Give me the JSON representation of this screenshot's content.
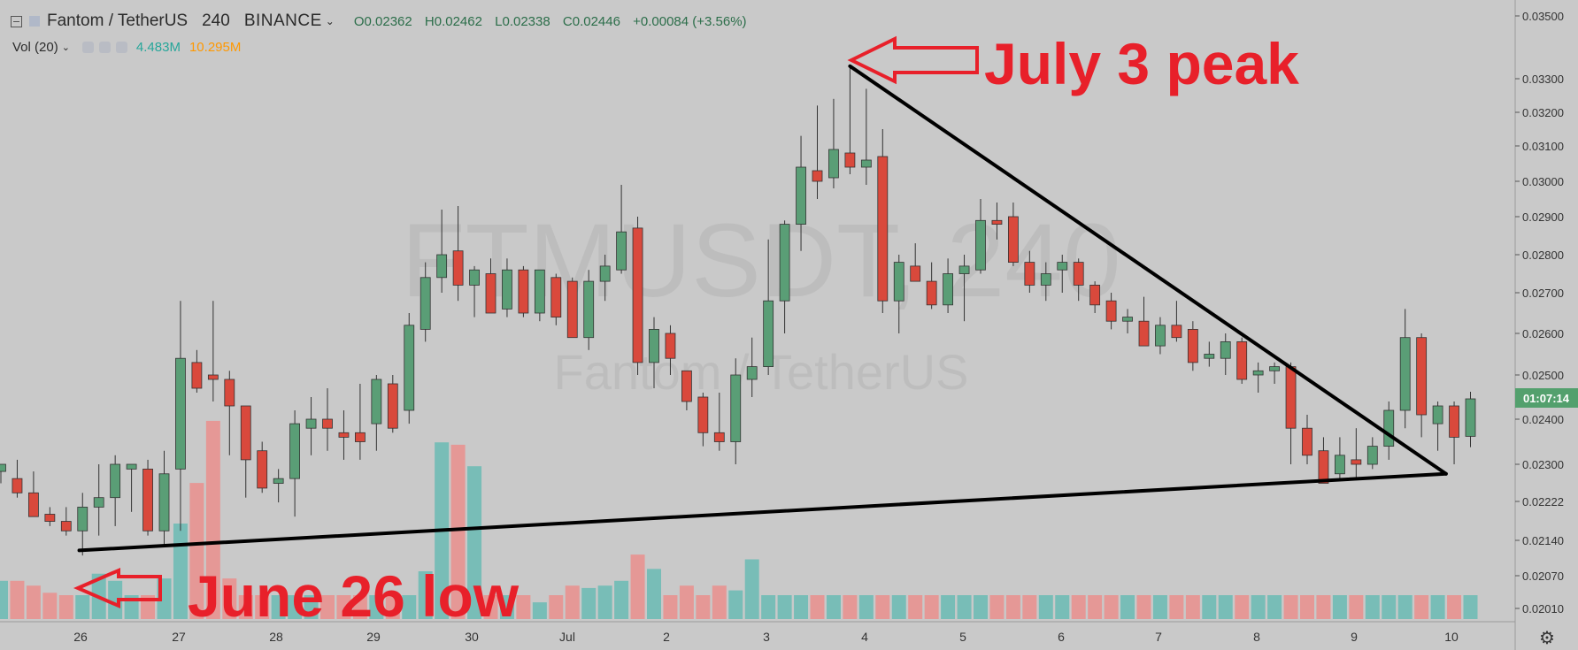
{
  "header": {
    "symbol": "Fantom / TetherUS",
    "interval": "240",
    "exchange": "BINANCE",
    "open": "O0.02362",
    "high": "H0.02462",
    "low": "L0.02338",
    "close": "C0.02446",
    "change": "+0.00084 (+3.56%)"
  },
  "volume_indicator": {
    "label": "Vol (20)",
    "value1": "4.483M",
    "value2": "10.295M"
  },
  "watermark": {
    "ticker": "FTMUSDT, 240",
    "name": "Fantom / TetherUS"
  },
  "price_axis": {
    "labels": [
      "0.03500",
      "0.03300",
      "0.03200",
      "0.03100",
      "0.03000",
      "0.02900",
      "0.02800",
      "0.02700",
      "0.02600",
      "0.02500",
      "0.02400",
      "0.02300",
      "0.02222",
      "0.02140",
      "0.02070",
      "0.02010"
    ],
    "last_price_timer": "01:07:14"
  },
  "time_axis": {
    "labels": [
      "26",
      "27",
      "28",
      "29",
      "30",
      "Jul",
      "2",
      "3",
      "4",
      "5",
      "6",
      "7",
      "8",
      "9",
      "10"
    ]
  },
  "annotations": {
    "peak_label": "July 3 peak",
    "low_label": "June 26 low"
  },
  "colors": {
    "background": "#c9c9c9",
    "up": "#5a9e76",
    "down": "#d9493c",
    "volume_up": "#78bdb7",
    "volume_down": "#e59896",
    "annotation": "#e8202a",
    "trendline": "#000000",
    "timer_badge": "#53a06d"
  },
  "chart_data": {
    "type": "candlestick",
    "timeframe_minutes": 240,
    "x_labels": [
      "26",
      "27",
      "28",
      "29",
      "30",
      "Jul",
      "2",
      "3",
      "4",
      "5",
      "6",
      "7",
      "8",
      "9",
      "10"
    ],
    "ylim": [
      0.0198,
      0.0355
    ],
    "candles": [
      {
        "o": 0.02285,
        "h": 0.023,
        "l": 0.0226,
        "c": 0.023
      },
      {
        "o": 0.0227,
        "h": 0.0231,
        "l": 0.0223,
        "c": 0.0224
      },
      {
        "o": 0.0224,
        "h": 0.02285,
        "l": 0.022,
        "c": 0.0219
      },
      {
        "o": 0.02195,
        "h": 0.0221,
        "l": 0.0217,
        "c": 0.0218
      },
      {
        "o": 0.0218,
        "h": 0.0221,
        "l": 0.0215,
        "c": 0.0216
      },
      {
        "o": 0.0216,
        "h": 0.0224,
        "l": 0.0211,
        "c": 0.0221
      },
      {
        "o": 0.0221,
        "h": 0.023,
        "l": 0.0215,
        "c": 0.0223
      },
      {
        "o": 0.0223,
        "h": 0.0232,
        "l": 0.0217,
        "c": 0.023
      },
      {
        "o": 0.0229,
        "h": 0.023,
        "l": 0.022,
        "c": 0.023
      },
      {
        "o": 0.0229,
        "h": 0.0231,
        "l": 0.0215,
        "c": 0.0216
      },
      {
        "o": 0.0216,
        "h": 0.0233,
        "l": 0.0213,
        "c": 0.0228
      },
      {
        "o": 0.0229,
        "h": 0.0268,
        "l": 0.0216,
        "c": 0.0254
      },
      {
        "o": 0.0253,
        "h": 0.0256,
        "l": 0.0246,
        "c": 0.0247
      },
      {
        "o": 0.025,
        "h": 0.0268,
        "l": 0.0244,
        "c": 0.0249
      },
      {
        "o": 0.0249,
        "h": 0.0251,
        "l": 0.0232,
        "c": 0.0243
      },
      {
        "o": 0.0243,
        "h": 0.0243,
        "l": 0.0223,
        "c": 0.0231
      },
      {
        "o": 0.0233,
        "h": 0.0235,
        "l": 0.0224,
        "c": 0.0225
      },
      {
        "o": 0.0226,
        "h": 0.0229,
        "l": 0.0222,
        "c": 0.0227
      },
      {
        "o": 0.0227,
        "h": 0.0242,
        "l": 0.0219,
        "c": 0.0239
      },
      {
        "o": 0.0238,
        "h": 0.0245,
        "l": 0.0232,
        "c": 0.024
      },
      {
        "o": 0.024,
        "h": 0.0247,
        "l": 0.0233,
        "c": 0.0238
      },
      {
        "o": 0.0237,
        "h": 0.0242,
        "l": 0.0231,
        "c": 0.0236
      },
      {
        "o": 0.0237,
        "h": 0.0248,
        "l": 0.0231,
        "c": 0.0235
      },
      {
        "o": 0.0239,
        "h": 0.025,
        "l": 0.0233,
        "c": 0.0249
      },
      {
        "o": 0.0248,
        "h": 0.025,
        "l": 0.0237,
        "c": 0.0238
      },
      {
        "o": 0.0242,
        "h": 0.0265,
        "l": 0.0239,
        "c": 0.0262
      },
      {
        "o": 0.0261,
        "h": 0.0278,
        "l": 0.0258,
        "c": 0.0274
      },
      {
        "o": 0.0274,
        "h": 0.0292,
        "l": 0.027,
        "c": 0.028
      },
      {
        "o": 0.0281,
        "h": 0.0293,
        "l": 0.0268,
        "c": 0.0272
      },
      {
        "o": 0.0272,
        "h": 0.0277,
        "l": 0.0264,
        "c": 0.0276
      },
      {
        "o": 0.0275,
        "h": 0.0279,
        "l": 0.0265,
        "c": 0.0265
      },
      {
        "o": 0.0266,
        "h": 0.0279,
        "l": 0.0264,
        "c": 0.0276
      },
      {
        "o": 0.0276,
        "h": 0.0277,
        "l": 0.0264,
        "c": 0.0265
      },
      {
        "o": 0.0265,
        "h": 0.0276,
        "l": 0.0263,
        "c": 0.0276
      },
      {
        "o": 0.0274,
        "h": 0.0275,
        "l": 0.0262,
        "c": 0.0264
      },
      {
        "o": 0.0273,
        "h": 0.0274,
        "l": 0.026,
        "c": 0.0259
      },
      {
        "o": 0.0259,
        "h": 0.0276,
        "l": 0.0256,
        "c": 0.0273
      },
      {
        "o": 0.0273,
        "h": 0.028,
        "l": 0.0268,
        "c": 0.0277
      },
      {
        "o": 0.0276,
        "h": 0.0299,
        "l": 0.0275,
        "c": 0.0286
      },
      {
        "o": 0.0287,
        "h": 0.029,
        "l": 0.025,
        "c": 0.0253
      },
      {
        "o": 0.0253,
        "h": 0.0264,
        "l": 0.0247,
        "c": 0.0261
      },
      {
        "o": 0.026,
        "h": 0.0262,
        "l": 0.025,
        "c": 0.0254
      },
      {
        "o": 0.0251,
        "h": 0.0251,
        "l": 0.0242,
        "c": 0.0244
      },
      {
        "o": 0.0245,
        "h": 0.0246,
        "l": 0.0234,
        "c": 0.0237
      },
      {
        "o": 0.0237,
        "h": 0.0246,
        "l": 0.0233,
        "c": 0.0235
      },
      {
        "o": 0.0235,
        "h": 0.0254,
        "l": 0.023,
        "c": 0.025
      },
      {
        "o": 0.0249,
        "h": 0.0259,
        "l": 0.0245,
        "c": 0.0252
      },
      {
        "o": 0.0252,
        "h": 0.0284,
        "l": 0.025,
        "c": 0.0268
      },
      {
        "o": 0.0268,
        "h": 0.0289,
        "l": 0.026,
        "c": 0.0288
      },
      {
        "o": 0.0288,
        "h": 0.0313,
        "l": 0.0281,
        "c": 0.0304
      },
      {
        "o": 0.0303,
        "h": 0.0322,
        "l": 0.0295,
        "c": 0.03
      },
      {
        "o": 0.0301,
        "h": 0.0324,
        "l": 0.0298,
        "c": 0.0309
      },
      {
        "o": 0.0308,
        "h": 0.0334,
        "l": 0.0302,
        "c": 0.0304
      },
      {
        "o": 0.0304,
        "h": 0.0327,
        "l": 0.0299,
        "c": 0.0306
      },
      {
        "o": 0.0307,
        "h": 0.0315,
        "l": 0.0265,
        "c": 0.0268
      },
      {
        "o": 0.0268,
        "h": 0.028,
        "l": 0.026,
        "c": 0.0278
      },
      {
        "o": 0.0277,
        "h": 0.0283,
        "l": 0.0274,
        "c": 0.0273
      },
      {
        "o": 0.0273,
        "h": 0.0278,
        "l": 0.0266,
        "c": 0.0267
      },
      {
        "o": 0.0267,
        "h": 0.0279,
        "l": 0.0265,
        "c": 0.0275
      },
      {
        "o": 0.0275,
        "h": 0.028,
        "l": 0.0263,
        "c": 0.0277
      },
      {
        "o": 0.0276,
        "h": 0.0295,
        "l": 0.0275,
        "c": 0.0289
      },
      {
        "o": 0.0289,
        "h": 0.0294,
        "l": 0.0284,
        "c": 0.0288
      },
      {
        "o": 0.029,
        "h": 0.0294,
        "l": 0.0277,
        "c": 0.0278
      },
      {
        "o": 0.0278,
        "h": 0.0281,
        "l": 0.027,
        "c": 0.0272
      },
      {
        "o": 0.0272,
        "h": 0.0278,
        "l": 0.0268,
        "c": 0.0275
      },
      {
        "o": 0.0276,
        "h": 0.028,
        "l": 0.027,
        "c": 0.0278
      },
      {
        "o": 0.0278,
        "h": 0.0279,
        "l": 0.0268,
        "c": 0.0272
      },
      {
        "o": 0.0272,
        "h": 0.0273,
        "l": 0.0265,
        "c": 0.0267
      },
      {
        "o": 0.0268,
        "h": 0.027,
        "l": 0.0261,
        "c": 0.0263
      },
      {
        "o": 0.0263,
        "h": 0.0266,
        "l": 0.026,
        "c": 0.0264
      },
      {
        "o": 0.0263,
        "h": 0.0269,
        "l": 0.0257,
        "c": 0.0257
      },
      {
        "o": 0.0257,
        "h": 0.0264,
        "l": 0.0255,
        "c": 0.0262
      },
      {
        "o": 0.0262,
        "h": 0.0268,
        "l": 0.0258,
        "c": 0.0259
      },
      {
        "o": 0.0261,
        "h": 0.0263,
        "l": 0.0251,
        "c": 0.0253
      },
      {
        "o": 0.0254,
        "h": 0.0258,
        "l": 0.0252,
        "c": 0.0255
      },
      {
        "o": 0.0254,
        "h": 0.026,
        "l": 0.025,
        "c": 0.0258
      },
      {
        "o": 0.0258,
        "h": 0.0259,
        "l": 0.0248,
        "c": 0.0249
      },
      {
        "o": 0.025,
        "h": 0.0253,
        "l": 0.0246,
        "c": 0.0251
      },
      {
        "o": 0.0251,
        "h": 0.0253,
        "l": 0.0248,
        "c": 0.0252
      },
      {
        "o": 0.0252,
        "h": 0.0253,
        "l": 0.023,
        "c": 0.0238
      },
      {
        "o": 0.0238,
        "h": 0.0241,
        "l": 0.023,
        "c": 0.0232
      },
      {
        "o": 0.0233,
        "h": 0.0236,
        "l": 0.0226,
        "c": 0.0226
      },
      {
        "o": 0.0228,
        "h": 0.0236,
        "l": 0.0227,
        "c": 0.0232
      },
      {
        "o": 0.0231,
        "h": 0.0238,
        "l": 0.0227,
        "c": 0.023
      },
      {
        "o": 0.023,
        "h": 0.0236,
        "l": 0.0229,
        "c": 0.0234
      },
      {
        "o": 0.0234,
        "h": 0.0244,
        "l": 0.0231,
        "c": 0.0242
      },
      {
        "o": 0.0242,
        "h": 0.0266,
        "l": 0.0238,
        "c": 0.0259
      },
      {
        "o": 0.0259,
        "h": 0.026,
        "l": 0.0236,
        "c": 0.0241
      },
      {
        "o": 0.0239,
        "h": 0.0244,
        "l": 0.0233,
        "c": 0.0243
      },
      {
        "o": 0.0243,
        "h": 0.0244,
        "l": 0.023,
        "c": 0.0236
      },
      {
        "o": 0.02362,
        "h": 0.02462,
        "l": 0.02338,
        "c": 0.02446
      }
    ],
    "volume": [
      1.6,
      1.6,
      1.4,
      1.1,
      1.0,
      1.0,
      1.9,
      1.6,
      1.0,
      1.0,
      1.7,
      4.0,
      5.7,
      8.3,
      1.7,
      1.0,
      1.0,
      1.0,
      1.0,
      1.0,
      1.0,
      1.0,
      1.0,
      1.0,
      1.0,
      1.0,
      2.0,
      7.4,
      7.3,
      6.4,
      1.0,
      1.0,
      1.0,
      0.7,
      1.0,
      1.4,
      1.3,
      1.4,
      1.6,
      2.7,
      2.1,
      1.0,
      1.4,
      1.0,
      1.4,
      1.2,
      2.5,
      1.0,
      1.0,
      1.0,
      1.0,
      1.0,
      1.0,
      1.0,
      1.0,
      1.0,
      1.0,
      1.0,
      1.0,
      1.0,
      1.0,
      1.0,
      1.0,
      1.0,
      1.0,
      1.0,
      1.0,
      1.0,
      1.0,
      1.0,
      1.0,
      1.0,
      1.0,
      1.0,
      1.0,
      1.0,
      1.0,
      1.0,
      1.0,
      1.0,
      1.0,
      1.0,
      1.0,
      1.0,
      1.0,
      1.0,
      1.0,
      1.0,
      1.0,
      1.0,
      1.0
    ],
    "trendlines": [
      {
        "from": {
          "candle": 52,
          "price": 0.0334
        },
        "to": {
          "candle": 88.5,
          "price": 0.0228
        }
      },
      {
        "from": {
          "candle": 4.8,
          "price": 0.0212
        },
        "to": {
          "candle": 88.5,
          "price": 0.0228
        }
      }
    ]
  }
}
